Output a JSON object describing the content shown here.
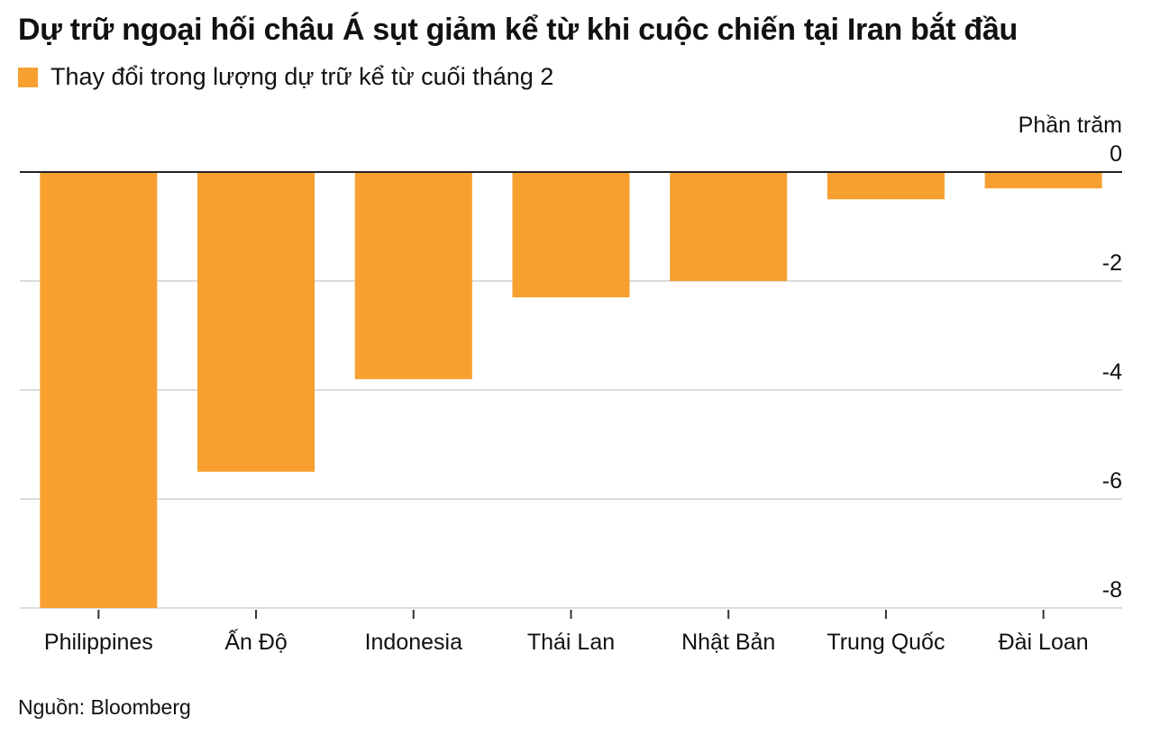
{
  "title": "Dự trữ ngoại hối châu Á sụt giảm kể từ khi cuộc chiến tại Iran bắt đầu",
  "legend": {
    "label": "Thay đổi trong lượng dự trữ kể từ cuối tháng 2",
    "color": "#F7A030"
  },
  "source": "Nguồn: Bloomberg",
  "chart_data": {
    "type": "bar",
    "title": "Dự trữ ngoại hối châu Á sụt giảm kể từ khi cuộc chiến tại Iran bắt đầu",
    "ylabel": "Phần trăm",
    "xlabel": "",
    "categories": [
      "Philippines",
      "Ấn Độ",
      "Indonesia",
      "Thái Lan",
      "Nhật Bản",
      "Trung Quốc",
      "Đài Loan"
    ],
    "series": [
      {
        "name": "Thay đổi trong lượng dự trữ kể từ cuối tháng 2",
        "values": [
          -8.0,
          -5.5,
          -3.8,
          -2.3,
          -2.0,
          -0.5,
          -0.3
        ]
      }
    ],
    "ylim": [
      -8,
      0
    ],
    "yticks": [
      0,
      -2,
      -4,
      -6,
      -8
    ],
    "ytick_labels": [
      "0",
      "-2",
      "-4",
      "-6",
      "-8"
    ],
    "grid": true,
    "y_axis_position": "right",
    "legend_position": "top-left",
    "bar_color": "#F7A030"
  }
}
